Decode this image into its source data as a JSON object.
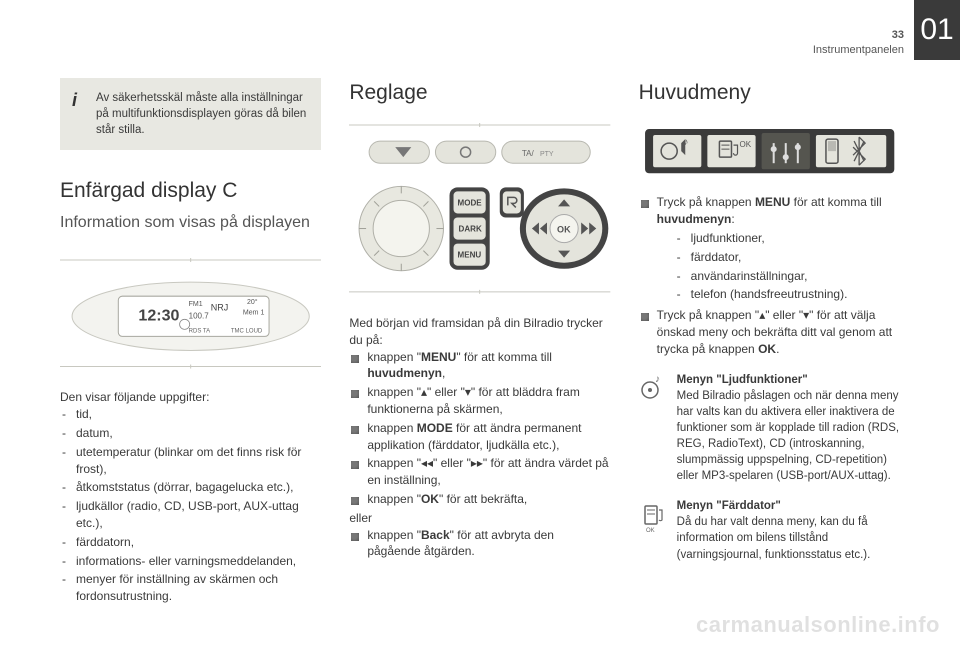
{
  "page": {
    "chapter_number": "01",
    "page_number": "33",
    "section_name": "Instrumentpanelen"
  },
  "col1": {
    "warning": "Av säkerhetsskäl måste alla inställningar på multifunktionsdisplayen göras då bilen står stilla.",
    "h1": "Enfärgad display C",
    "h2": "Information som visas på displayen",
    "display_readout": {
      "time": "12:30",
      "band": "FM1",
      "station": "NRJ",
      "freq": "100.7",
      "temp": "20°",
      "preset": "Mem 1",
      "tags": [
        "RDS TA",
        "TMC LOUD"
      ]
    },
    "list_intro": "Den visar följande uppgifter:",
    "items": [
      "tid,",
      "datum,",
      "utetemperatur (blinkar om det finns risk för frost),",
      "åtkomststatus (dörrar, bagagelucka etc.),",
      "ljudkällor (radio, CD, USB-port, AUX-uttag etc.),",
      "färddatorn,",
      "informations- eller varningsmeddelanden,",
      "menyer för inställning av skärmen och fordonsutrustning."
    ]
  },
  "col2": {
    "h1": "Reglage",
    "buttons": {
      "mode": "MODE",
      "dark": "DARK",
      "menu": "MENU",
      "ok": "OK"
    },
    "intro": "Med början vid framsidan på din Bilradio trycker du på:",
    "items_html": [
      "knappen \"<b>MENU</b>\" för att komma till <b>huvudmenyn</b>,",
      "knappen \"▴\" eller \"▾\" för att bläddra fram funktionerna på skärmen,",
      "knappen <b>MODE</b> för att ändra permanent applikation (färddator, ljudkälla etc.),",
      "knappen \"◂◂\" eller \"▸▸\" för att ändra värdet på en inställning,",
      "knappen \"<b>OK</b>\" för att bekräfta,"
    ],
    "eller": "eller",
    "back_item_html": "knappen \"<b>Back</b>\" för att avbryta den pågående åtgärden."
  },
  "col3": {
    "h1": "Huvudmeny",
    "items_html": [
      "Tryck på knappen <b>MENU</b> för att komma till <b>huvudmenyn</b>:",
      "Tryck på knappen \"▴\" eller \"▾\" för att välja önskad meny och bekräfta ditt val genom att trycka på knappen <b>OK</b>."
    ],
    "sub_items": [
      "ljudfunktioner,",
      "färddator,",
      "användarinställningar,",
      "telefon (handsfreeutrustning)."
    ],
    "info1_title": "Menyn \"Ljudfunktioner\"",
    "info1_body": "Med Bilradio påslagen och när denna meny har valts kan du aktivera eller inaktivera de funktioner som är kopplade till radion (RDS, REG, RadioText), CD (introskanning, slumpmässig uppspelning, CD-repetition) eller MP3-spelaren (USB-port/AUX-uttag).",
    "info2_title": "Menyn \"Färddator\"",
    "info2_body": "Då du har valt denna meny, kan du få information om bilens tillstånd (varningsjournal, funktionsstatus etc.)."
  },
  "watermark": "carmanualsonline.info",
  "colors": {
    "tab_bg": "#3a3a3a",
    "warn_bg": "#e8e8e2",
    "text": "#3a3a3a",
    "light": "#9a9a94"
  }
}
